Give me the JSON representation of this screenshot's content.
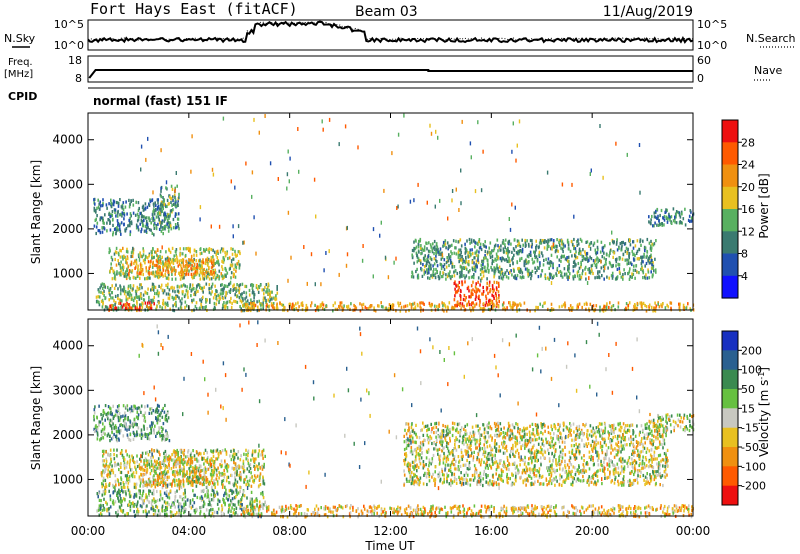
{
  "header": {
    "station": "Fort Hays East (fitACF)",
    "beam": "Beam 03",
    "date": "11/Aug/2019"
  },
  "noise_panel": {
    "left_label": "N.Sky",
    "right_label": "N.Search",
    "left_ticks": [
      "10^5",
      "10^0"
    ],
    "right_ticks": [
      "10^5",
      "10^0"
    ]
  },
  "freq_panel": {
    "left_label_1": "Freq.",
    "left_label_2": "[MHz]",
    "right_label": "Nave",
    "left_ticks": [
      "18",
      "8"
    ],
    "right_ticks": [
      "60",
      "0"
    ]
  },
  "cpid": {
    "label": "CPID",
    "mode": "normal (fast) 151 IF"
  },
  "axes": {
    "y_label": "Slant Range [km]",
    "y_ticks": [
      "1000",
      "2000",
      "3000",
      "4000"
    ],
    "x_label": "Time UT",
    "x_ticks": [
      "00:00",
      "04:00",
      "08:00",
      "12:00",
      "16:00",
      "20:00",
      "00:00"
    ]
  },
  "power_colorbar": {
    "label": "Power [dB]",
    "ticks": [
      "4",
      "8",
      "12",
      "16",
      "20",
      "24",
      "28"
    ],
    "colors": [
      "#1010ff",
      "#2050b0",
      "#3a7a70",
      "#58b060",
      "#e8c020",
      "#f09010",
      "#ff5a00",
      "#ee1010"
    ]
  },
  "velocity_colorbar": {
    "label": "Velocity [m s",
    "label_sup": "-1",
    "label_end": "]",
    "ticks": [
      "200",
      "100",
      "50",
      "15",
      "-15",
      "-50",
      "-100",
      "-200"
    ],
    "colors": [
      "#1830c0",
      "#2a6090",
      "#3a8a50",
      "#66c040",
      "#c8c8c0",
      "#e8c020",
      "#f09010",
      "#ff5a00",
      "#ee1010"
    ]
  },
  "chart_data": [
    {
      "type": "heatmap",
      "title": "Power",
      "x_range_hours": [
        0,
        24
      ],
      "ylim": [
        180,
        4600
      ],
      "regions": [
        {
          "t0": 0.2,
          "t1": 3.2,
          "r0": 1900,
          "r1": 2700,
          "value": 10
        },
        {
          "t0": 2.8,
          "t1": 3.6,
          "r0": 2000,
          "r1": 3000,
          "value": 12
        },
        {
          "t0": 0.8,
          "t1": 6.0,
          "r0": 900,
          "r1": 1600,
          "value": 16
        },
        {
          "t0": 1.5,
          "t1": 5.0,
          "r0": 1000,
          "r1": 1350,
          "value": 22
        },
        {
          "t0": 0.3,
          "t1": 7.5,
          "r0": 200,
          "r1": 800,
          "value": 14
        },
        {
          "t0": 0.8,
          "t1": 2.6,
          "r0": 200,
          "r1": 380,
          "value": 26
        },
        {
          "t0": 12.8,
          "t1": 22.5,
          "r0": 900,
          "r1": 1800,
          "value": 12
        },
        {
          "t0": 14.5,
          "t1": 16.3,
          "r0": 300,
          "r1": 850,
          "value": 27
        },
        {
          "t0": 6.0,
          "t1": 24.0,
          "r0": 190,
          "r1": 380,
          "value": 20
        },
        {
          "t0": 22.2,
          "t1": 24.0,
          "r0": 2100,
          "r1": 2500,
          "value": 10
        }
      ]
    },
    {
      "type": "heatmap",
      "title": "Velocity",
      "x_range_hours": [
        0,
        24
      ],
      "ylim": [
        180,
        4600
      ],
      "regions": [
        {
          "t0": 0.2,
          "t1": 3.2,
          "r0": 1900,
          "r1": 2700,
          "value": 60
        },
        {
          "t0": 0.5,
          "t1": 7.0,
          "r0": 850,
          "r1": 1700,
          "value": 0
        },
        {
          "t0": 2.0,
          "t1": 5.0,
          "r0": 900,
          "r1": 1500,
          "value": -30
        },
        {
          "t0": 0.3,
          "t1": 7.0,
          "r0": 200,
          "r1": 800,
          "value": 40
        },
        {
          "t0": 12.5,
          "t1": 23.0,
          "r0": 900,
          "r1": 2300,
          "value": 0
        },
        {
          "t0": 6.0,
          "t1": 24.0,
          "r0": 190,
          "r1": 450,
          "value": -40
        },
        {
          "t0": 22.2,
          "t1": 24.0,
          "r0": 2100,
          "r1": 2500,
          "value": 0
        }
      ]
    }
  ]
}
